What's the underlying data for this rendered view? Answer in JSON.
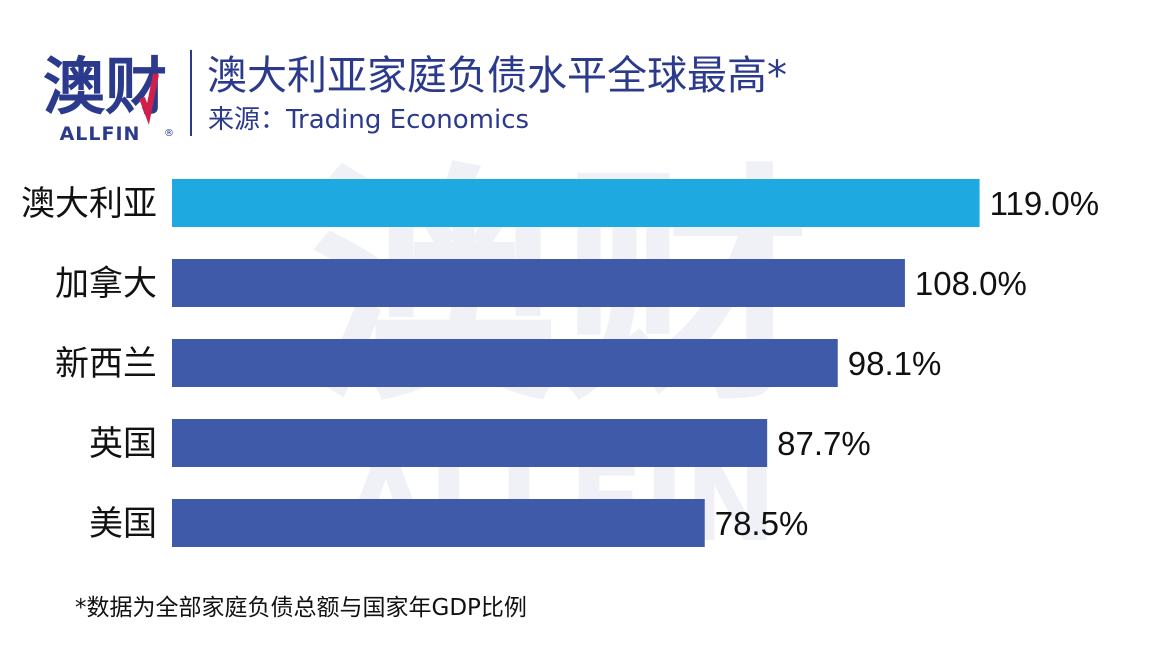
{
  "header": {
    "logo_text": "澳财",
    "logo_sub": "ALLFIN",
    "logo_reg": "®",
    "title": "澳大利亚家庭负债水平全球最高*",
    "source": "来源：Trading Economics"
  },
  "watermark": {
    "text_main": "澳财",
    "text_sub": "ALLFIN"
  },
  "colors": {
    "brand": "#2b3a8c",
    "highlight": "#1fa9e1",
    "bar": "#3f5aa8",
    "logo_accent": "#d0204a"
  },
  "chart_data": {
    "type": "bar",
    "orientation": "horizontal",
    "categories": [
      "澳大利亚",
      "加拿大",
      "新西兰",
      "英国",
      "美国"
    ],
    "values": [
      119.0,
      108.0,
      98.1,
      87.7,
      78.5
    ],
    "value_labels": [
      "119.0%",
      "108.0%",
      "98.1%",
      "87.7%",
      "78.5%"
    ],
    "highlight_index": 0,
    "xlim": [
      0,
      125
    ],
    "grid": false,
    "legend": "none"
  },
  "footnote": "*数据为全部家庭负债总额与国家年GDP比例"
}
